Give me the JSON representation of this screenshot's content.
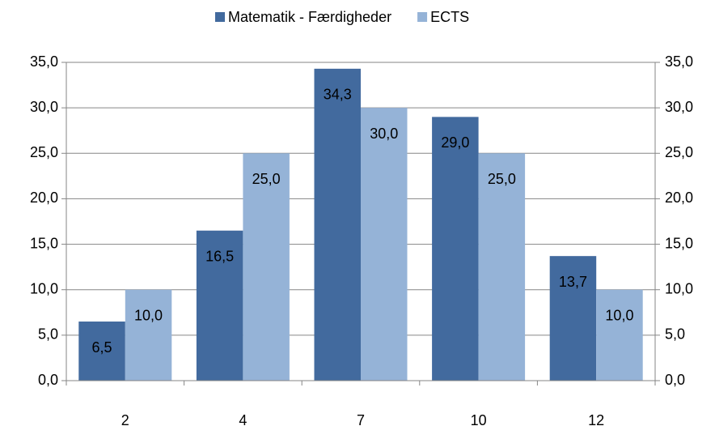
{
  "chart_data": {
    "type": "bar",
    "categories": [
      "2",
      "4",
      "7",
      "10",
      "12"
    ],
    "series": [
      {
        "name": "Matematik - Færdigheder",
        "color": "#426a9e",
        "values": [
          6.5,
          16.5,
          34.3,
          29.0,
          13.7
        ],
        "value_labels": [
          "6,5",
          "16,5",
          "34,3",
          "29,0",
          "13,7"
        ]
      },
      {
        "name": "ECTS",
        "color": "#95b3d7",
        "values": [
          10,
          25,
          30,
          25,
          10
        ],
        "value_labels": [
          "10,0",
          "25,0",
          "30,0",
          "25,0",
          "10,0"
        ]
      }
    ],
    "ylim": [
      0,
      35
    ],
    "yticks": [
      {
        "value": 0,
        "label": "0,0"
      },
      {
        "value": 5,
        "label": "5,0"
      },
      {
        "value": 10,
        "label": "10,0"
      },
      {
        "value": 15,
        "label": "15,0"
      },
      {
        "value": 20,
        "label": "20,0"
      },
      {
        "value": 25,
        "label": "25,0"
      },
      {
        "value": 30,
        "label": "30,0"
      },
      {
        "value": 35,
        "label": "35,0"
      }
    ],
    "grid": true,
    "legend": "top"
  }
}
